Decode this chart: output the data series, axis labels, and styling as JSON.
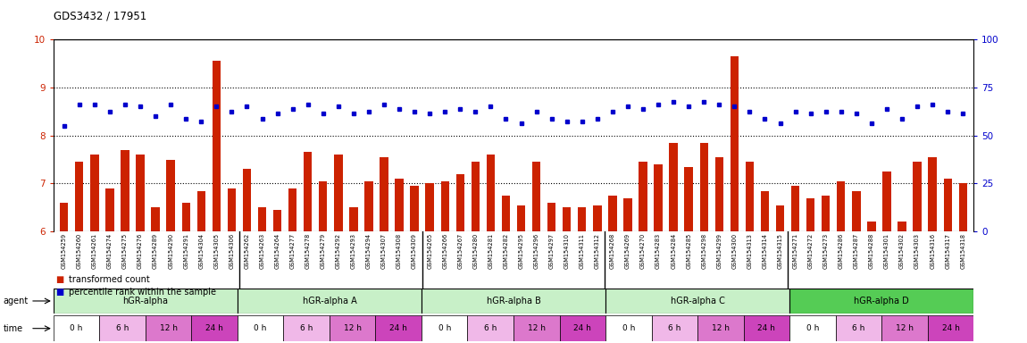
{
  "title": "GDS3432 / 17951",
  "samples": [
    "GSM154259",
    "GSM154260",
    "GSM154261",
    "GSM154274",
    "GSM154275",
    "GSM154276",
    "GSM154289",
    "GSM154290",
    "GSM154291",
    "GSM154304",
    "GSM154305",
    "GSM154306",
    "GSM154262",
    "GSM154263",
    "GSM154264",
    "GSM154277",
    "GSM154278",
    "GSM154279",
    "GSM154292",
    "GSM154293",
    "GSM154294",
    "GSM154307",
    "GSM154308",
    "GSM154309",
    "GSM154265",
    "GSM154266",
    "GSM154267",
    "GSM154280",
    "GSM154281",
    "GSM154282",
    "GSM154295",
    "GSM154296",
    "GSM154297",
    "GSM154310",
    "GSM154311",
    "GSM154312",
    "GSM154268",
    "GSM154269",
    "GSM154270",
    "GSM154283",
    "GSM154284",
    "GSM154285",
    "GSM154298",
    "GSM154299",
    "GSM154300",
    "GSM154313",
    "GSM154314",
    "GSM154315",
    "GSM154271",
    "GSM154272",
    "GSM154273",
    "GSM154286",
    "GSM154287",
    "GSM154288",
    "GSM154301",
    "GSM154302",
    "GSM154303",
    "GSM154316",
    "GSM154317",
    "GSM154318"
  ],
  "bar_values": [
    6.6,
    7.45,
    7.6,
    6.9,
    7.7,
    7.6,
    6.5,
    7.5,
    6.6,
    6.85,
    9.55,
    6.9,
    7.3,
    6.5,
    6.45,
    6.9,
    7.65,
    7.05,
    7.6,
    6.5,
    7.05,
    7.55,
    7.1,
    6.95,
    7.0,
    7.05,
    7.2,
    7.45,
    7.6,
    6.75,
    6.55,
    7.45,
    6.6,
    6.5,
    6.5,
    6.55,
    6.75,
    6.7,
    7.45,
    7.4,
    7.85,
    7.35,
    7.85,
    7.55,
    9.65,
    7.45,
    6.85,
    6.55,
    6.95,
    6.7,
    6.75,
    7.05,
    6.85,
    6.2,
    7.25,
    6.2,
    7.45,
    7.55,
    7.1,
    7.0
  ],
  "blue_values_left_scale": [
    8.2,
    8.65,
    8.65,
    8.5,
    8.65,
    8.6,
    8.4,
    8.65,
    8.35,
    8.3,
    8.6,
    8.5,
    8.6,
    8.35,
    8.45,
    8.55,
    8.65,
    8.45,
    8.6,
    8.45,
    8.5,
    8.65,
    8.55,
    8.5,
    8.45,
    8.5,
    8.55,
    8.5,
    8.6,
    8.35,
    8.25,
    8.5,
    8.35,
    8.3,
    8.3,
    8.35,
    8.5,
    8.6,
    8.55,
    8.65,
    8.7,
    8.6,
    8.7,
    8.65,
    8.6,
    8.5,
    8.35,
    8.25,
    8.5,
    8.45,
    8.5,
    8.5,
    8.45,
    8.25,
    8.55,
    8.35,
    8.6,
    8.65,
    8.5,
    8.45
  ],
  "ylim_left": [
    6.0,
    10.0
  ],
  "ylim_right": [
    0,
    100
  ],
  "yticks_left": [
    6,
    7,
    8,
    9,
    10
  ],
  "yticks_right": [
    0,
    25,
    50,
    75,
    100
  ],
  "bar_color": "#cc2200",
  "dot_color": "#0000cc",
  "background_color": "#ffffff",
  "agent_labels": [
    "hGR-alpha",
    "hGR-alpha A",
    "hGR-alpha B",
    "hGR-alpha C",
    "hGR-alpha D"
  ],
  "agent_colors": [
    "#c8f0c8",
    "#c8f0c8",
    "#c8f0c8",
    "#c8f0c8",
    "#55cc55"
  ],
  "time_labels": [
    "0 h",
    "6 h",
    "12 h",
    "24 h"
  ],
  "time_colors": [
    "#ffffff",
    "#f0b8e8",
    "#dc78cc",
    "#cc44bb"
  ],
  "legend_bar_label": "transformed count",
  "legend_dot_label": "percentile rank within the sample"
}
